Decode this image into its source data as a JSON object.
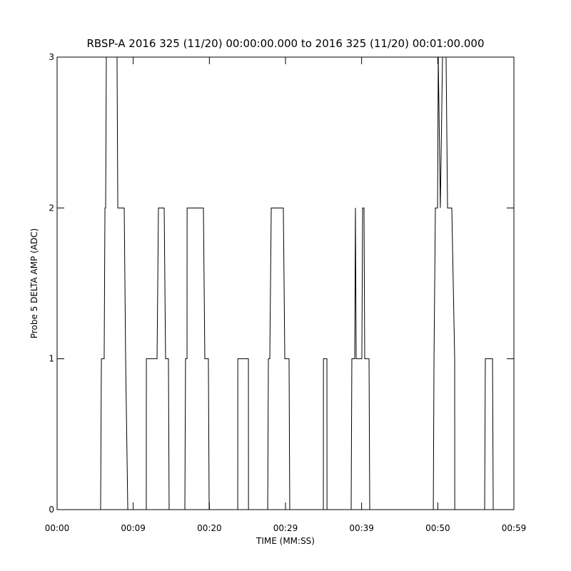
{
  "chart_data": {
    "type": "line",
    "title": "RBSP-A 2016 325 (11/20) 00:00:00.000 to 2016 325 (11/20) 00:01:00.000",
    "x_label": "TIME (MM:SS)",
    "y_label": "Probe 5 DELTA AMP (ADC)",
    "x": [
      0,
      5.62,
      5.72,
      6.08,
      6.18,
      6.27,
      6.36,
      7.74,
      7.84,
      8.67,
      8.85,
      9.13,
      11.52,
      11.53,
      12.91,
      13.09,
      13.83,
      14.01,
      14.38,
      14.47,
      16.5,
      16.59,
      16.78,
      16.79,
      18.9,
      19.08,
      19.54,
      19.64,
      23.33,
      23.34,
      23.42,
      24.71,
      24.72,
      27.2,
      27.29,
      27.47,
      27.66,
      29.22,
      29.41,
      29.96,
      30.05,
      34.39,
      34.4,
      34.85,
      34.86,
      37.98,
      38.07,
      38.44,
      38.53,
      38.63,
      39.36,
      39.46,
      39.64,
      39.73,
      40.29,
      40.38,
      48.59,
      48.68,
      48.86,
      49.14,
      49.23,
      49.5,
      49.78,
      50.24,
      50.43,
      50.98,
      51.35,
      51.36,
      55.22,
      55.31,
      56.24,
      56.33,
      59
    ],
    "series": [
      {
        "color": "#000000",
        "values": [
          0,
          0,
          1,
          1,
          2,
          2,
          3,
          3,
          2,
          2,
          1,
          0,
          0,
          1,
          1,
          2,
          2,
          1,
          1,
          0,
          0,
          1,
          1,
          2,
          2,
          1,
          1,
          0,
          0,
          1,
          1,
          1,
          0,
          0,
          1,
          1,
          2,
          2,
          1,
          1,
          0,
          0,
          1,
          1,
          0,
          0,
          1,
          1,
          2,
          1,
          1,
          2,
          2,
          1,
          1,
          0,
          0,
          1,
          2,
          2,
          3,
          2,
          3,
          3,
          2,
          2,
          1,
          0,
          0,
          1,
          1,
          0,
          0
        ]
      }
    ],
    "xlim": [
      0,
      59
    ],
    "xticks": [
      {
        "value": 0,
        "label": "00:00"
      },
      {
        "value": 9.83,
        "label": "00:09"
      },
      {
        "value": 19.67,
        "label": "00:20"
      },
      {
        "value": 29.5,
        "label": "00:29"
      },
      {
        "value": 39.33,
        "label": "00:39"
      },
      {
        "value": 49.17,
        "label": "00:50"
      },
      {
        "value": 59,
        "label": "00:59"
      }
    ],
    "ylim": [
      0,
      3
    ],
    "yticks": [
      0,
      1,
      2,
      3
    ]
  }
}
